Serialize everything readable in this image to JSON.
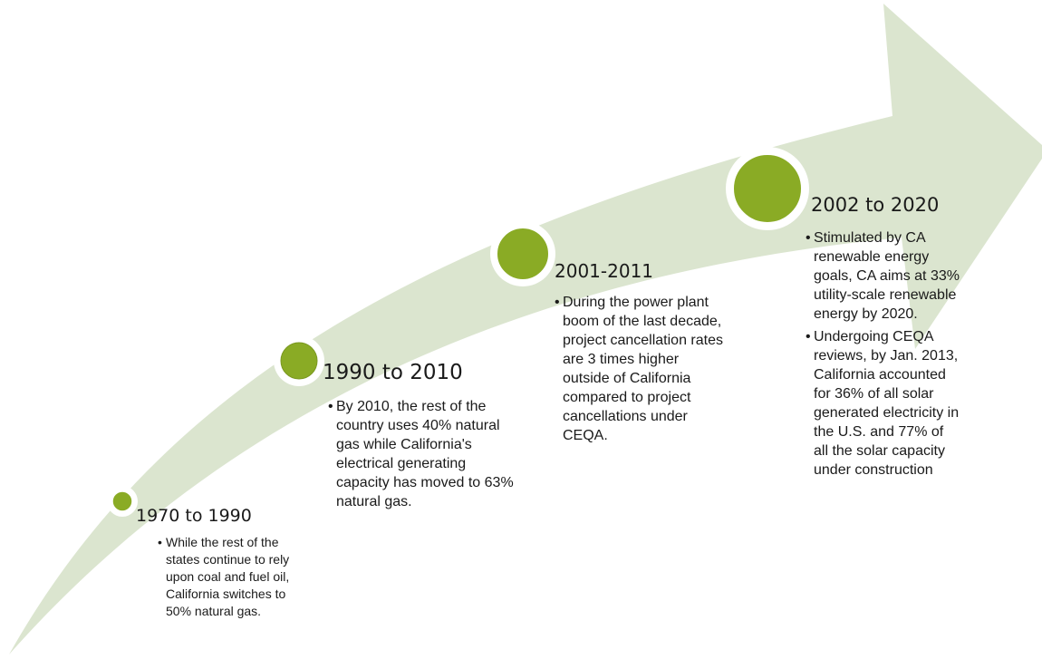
{
  "stages": [
    {
      "title": "1970 to 1990",
      "bullets": [
        "While the rest of the states continue to rely upon coal and fuel oil, California switches to 50% natural gas."
      ]
    },
    {
      "title": "1990 to 2010",
      "bullets": [
        "By 2010, the rest of the country uses 40% natural gas while California's electrical generating capacity has moved to 63% natural gas."
      ]
    },
    {
      "title": "2001-2011",
      "bullets": [
        "During the power plant boom of the last decade, project cancellation rates are 3 times higher outside of California compared to project cancellations under CEQA."
      ]
    },
    {
      "title": "2002 to 2020",
      "bullets": [
        "Stimulated by CA renewable energy goals, CA aims at 33% utility-scale renewable energy by 2020.",
        "Undergoing CEQA reviews, by Jan. 2013, California accounted for 36% of all solar generated electricity in the U.S. and 77% of all the solar capacity under construction"
      ]
    }
  ]
}
